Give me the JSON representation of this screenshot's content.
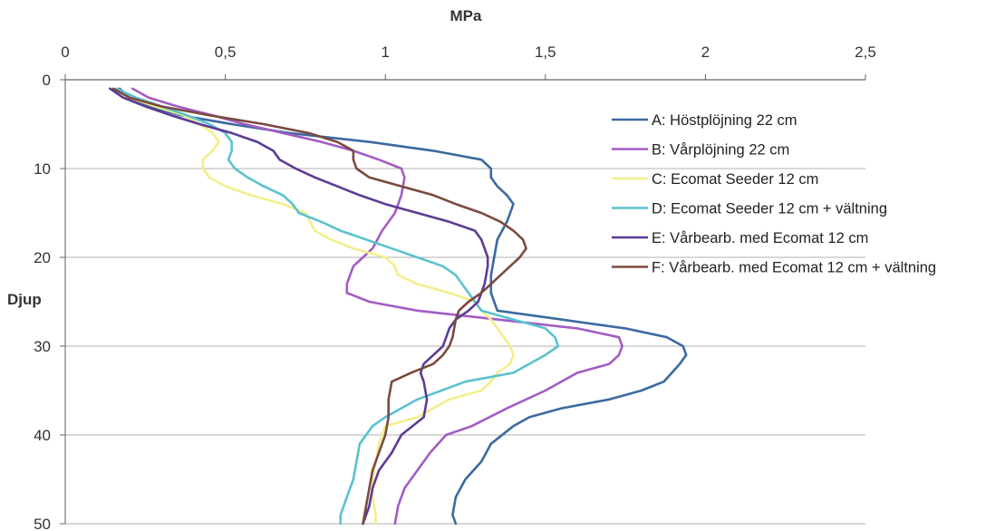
{
  "chart_data": {
    "type": "line",
    "xlabel": "MPa",
    "ylabel": "Djup",
    "xlim": [
      0,
      2.5
    ],
    "ylim": [
      0,
      50
    ],
    "y_inverted": true,
    "x_axis_position": "top",
    "x_ticks": [
      {
        "value": 0,
        "label": "0"
      },
      {
        "value": 0.5,
        "label": "0,5"
      },
      {
        "value": 1,
        "label": "1"
      },
      {
        "value": 1.5,
        "label": "1,5"
      },
      {
        "value": 2,
        "label": "2"
      },
      {
        "value": 2.5,
        "label": "2,5"
      }
    ],
    "y_ticks": [
      {
        "value": 0,
        "label": "0"
      },
      {
        "value": 10,
        "label": "10"
      },
      {
        "value": 20,
        "label": "20"
      },
      {
        "value": 30,
        "label": "30"
      },
      {
        "value": 40,
        "label": "40"
      },
      {
        "value": 50,
        "label": "50"
      }
    ],
    "grid": {
      "horizontal": true,
      "vertical": false
    },
    "legend_position": "right",
    "series": [
      {
        "name": "A: Höstplöjning 22 cm",
        "color": "#3b6aa0",
        "points": [
          [
            0.17,
            1
          ],
          [
            0.2,
            2
          ],
          [
            0.26,
            3
          ],
          [
            0.36,
            4
          ],
          [
            0.52,
            5
          ],
          [
            0.7,
            6
          ],
          [
            0.95,
            7
          ],
          [
            1.15,
            8
          ],
          [
            1.3,
            9
          ],
          [
            1.33,
            10
          ],
          [
            1.33,
            11
          ],
          [
            1.35,
            12
          ],
          [
            1.38,
            13
          ],
          [
            1.4,
            14
          ],
          [
            1.38,
            16
          ],
          [
            1.35,
            18
          ],
          [
            1.34,
            20
          ],
          [
            1.33,
            22
          ],
          [
            1.33,
            24
          ],
          [
            1.35,
            26
          ],
          [
            1.55,
            27
          ],
          [
            1.75,
            28
          ],
          [
            1.88,
            29
          ],
          [
            1.93,
            30
          ],
          [
            1.94,
            31
          ],
          [
            1.92,
            32
          ],
          [
            1.87,
            34
          ],
          [
            1.8,
            35
          ],
          [
            1.7,
            36
          ],
          [
            1.55,
            37
          ],
          [
            1.45,
            38
          ],
          [
            1.4,
            39
          ],
          [
            1.33,
            41
          ],
          [
            1.3,
            43
          ],
          [
            1.25,
            45
          ],
          [
            1.22,
            47
          ],
          [
            1.21,
            49
          ],
          [
            1.22,
            50
          ]
        ]
      },
      {
        "name": "B: Vårplöjning 22 cm",
        "color": "#a35cc4",
        "points": [
          [
            0.21,
            1
          ],
          [
            0.26,
            2
          ],
          [
            0.35,
            3
          ],
          [
            0.46,
            4
          ],
          [
            0.56,
            5
          ],
          [
            0.68,
            6
          ],
          [
            0.8,
            7
          ],
          [
            0.9,
            8
          ],
          [
            0.98,
            9
          ],
          [
            1.05,
            10
          ],
          [
            1.06,
            11
          ],
          [
            1.05,
            13
          ],
          [
            1.03,
            15
          ],
          [
            0.99,
            17
          ],
          [
            0.96,
            19
          ],
          [
            0.93,
            20
          ],
          [
            0.9,
            21
          ],
          [
            0.89,
            22
          ],
          [
            0.88,
            23
          ],
          [
            0.88,
            24
          ],
          [
            0.95,
            25
          ],
          [
            1.1,
            26
          ],
          [
            1.35,
            27
          ],
          [
            1.6,
            28
          ],
          [
            1.73,
            29
          ],
          [
            1.74,
            30
          ],
          [
            1.73,
            31
          ],
          [
            1.7,
            32
          ],
          [
            1.6,
            33
          ],
          [
            1.5,
            35
          ],
          [
            1.38,
            37
          ],
          [
            1.27,
            39
          ],
          [
            1.19,
            40
          ],
          [
            1.14,
            42
          ],
          [
            1.1,
            44
          ],
          [
            1.06,
            46
          ],
          [
            1.04,
            48
          ],
          [
            1.03,
            50
          ]
        ]
      },
      {
        "name": "C: Ecomat Seeder 12 cm",
        "color": "#f3ee8a",
        "points": [
          [
            0.15,
            1
          ],
          [
            0.2,
            2
          ],
          [
            0.28,
            3
          ],
          [
            0.37,
            4
          ],
          [
            0.42,
            5
          ],
          [
            0.46,
            6
          ],
          [
            0.48,
            7
          ],
          [
            0.46,
            8
          ],
          [
            0.43,
            9
          ],
          [
            0.43,
            10
          ],
          [
            0.45,
            11
          ],
          [
            0.5,
            12
          ],
          [
            0.58,
            13
          ],
          [
            0.68,
            14
          ],
          [
            0.75,
            15
          ],
          [
            0.78,
            17
          ],
          [
            0.83,
            18
          ],
          [
            0.9,
            19
          ],
          [
            1.0,
            20
          ],
          [
            1.03,
            21
          ],
          [
            1.04,
            22
          ],
          [
            1.1,
            23
          ],
          [
            1.2,
            24
          ],
          [
            1.28,
            25
          ],
          [
            1.3,
            26
          ],
          [
            1.33,
            27
          ],
          [
            1.37,
            29
          ],
          [
            1.39,
            30
          ],
          [
            1.4,
            31
          ],
          [
            1.39,
            32
          ],
          [
            1.35,
            33
          ],
          [
            1.33,
            34
          ],
          [
            1.3,
            35
          ],
          [
            1.2,
            36
          ],
          [
            1.1,
            38
          ],
          [
            1.0,
            39
          ],
          [
            0.98,
            41
          ],
          [
            0.97,
            43
          ],
          [
            0.96,
            45
          ],
          [
            0.96,
            47
          ],
          [
            0.97,
            49
          ],
          [
            0.97,
            50
          ]
        ]
      },
      {
        "name": "D: Ecomat Seeder 12 cm + vältning",
        "color": "#5ac2cf",
        "points": [
          [
            0.16,
            1
          ],
          [
            0.22,
            2
          ],
          [
            0.3,
            3
          ],
          [
            0.38,
            4
          ],
          [
            0.45,
            5
          ],
          [
            0.5,
            6
          ],
          [
            0.52,
            7
          ],
          [
            0.52,
            8
          ],
          [
            0.51,
            9
          ],
          [
            0.53,
            10
          ],
          [
            0.57,
            11
          ],
          [
            0.62,
            12
          ],
          [
            0.68,
            13
          ],
          [
            0.71,
            14
          ],
          [
            0.73,
            15
          ],
          [
            0.8,
            16
          ],
          [
            0.86,
            17
          ],
          [
            0.94,
            18
          ],
          [
            1.02,
            19
          ],
          [
            1.1,
            20
          ],
          [
            1.18,
            21
          ],
          [
            1.22,
            22
          ],
          [
            1.26,
            24
          ],
          [
            1.28,
            25
          ],
          [
            1.3,
            26
          ],
          [
            1.4,
            27
          ],
          [
            1.5,
            28
          ],
          [
            1.53,
            29
          ],
          [
            1.54,
            30
          ],
          [
            1.5,
            31
          ],
          [
            1.4,
            33
          ],
          [
            1.25,
            34
          ],
          [
            1.1,
            36
          ],
          [
            1.0,
            38
          ],
          [
            0.96,
            39
          ],
          [
            0.92,
            41
          ],
          [
            0.91,
            43
          ],
          [
            0.9,
            45
          ],
          [
            0.88,
            47
          ],
          [
            0.86,
            49
          ],
          [
            0.86,
            50
          ]
        ]
      },
      {
        "name": "E: Vårbearb. med Ecomat 12 cm",
        "color": "#5c3b94",
        "points": [
          [
            0.14,
            1
          ],
          [
            0.18,
            2
          ],
          [
            0.25,
            3
          ],
          [
            0.33,
            4
          ],
          [
            0.42,
            5
          ],
          [
            0.52,
            6
          ],
          [
            0.6,
            7
          ],
          [
            0.65,
            8
          ],
          [
            0.67,
            9
          ],
          [
            0.72,
            10
          ],
          [
            0.78,
            11
          ],
          [
            0.85,
            12
          ],
          [
            0.92,
            13
          ],
          [
            1.0,
            14
          ],
          [
            1.1,
            15
          ],
          [
            1.2,
            16
          ],
          [
            1.28,
            17
          ],
          [
            1.3,
            18
          ],
          [
            1.31,
            19
          ],
          [
            1.32,
            20
          ],
          [
            1.32,
            21
          ],
          [
            1.31,
            23
          ],
          [
            1.29,
            25
          ],
          [
            1.26,
            26
          ],
          [
            1.22,
            27
          ],
          [
            1.2,
            28
          ],
          [
            1.18,
            30
          ],
          [
            1.15,
            31
          ],
          [
            1.12,
            32
          ],
          [
            1.11,
            33
          ],
          [
            1.12,
            34
          ],
          [
            1.13,
            36
          ],
          [
            1.12,
            38
          ],
          [
            1.05,
            40
          ],
          [
            1.02,
            42
          ],
          [
            0.98,
            44
          ],
          [
            0.96,
            46
          ],
          [
            0.95,
            48
          ],
          [
            0.93,
            50
          ]
        ]
      },
      {
        "name": "F: Vårbearb. med Ecomat 12 cm + vältning",
        "color": "#7b4a3e",
        "points": [
          [
            0.15,
            1
          ],
          [
            0.2,
            2
          ],
          [
            0.3,
            3
          ],
          [
            0.45,
            4
          ],
          [
            0.62,
            5
          ],
          [
            0.76,
            6
          ],
          [
            0.85,
            7
          ],
          [
            0.9,
            8
          ],
          [
            0.9,
            9
          ],
          [
            0.91,
            10
          ],
          [
            0.95,
            11
          ],
          [
            1.05,
            12
          ],
          [
            1.15,
            13
          ],
          [
            1.22,
            14
          ],
          [
            1.3,
            15
          ],
          [
            1.36,
            16
          ],
          [
            1.4,
            17
          ],
          [
            1.43,
            18
          ],
          [
            1.44,
            19
          ],
          [
            1.42,
            20
          ],
          [
            1.39,
            21
          ],
          [
            1.36,
            22
          ],
          [
            1.33,
            23
          ],
          [
            1.3,
            24
          ],
          [
            1.26,
            25
          ],
          [
            1.23,
            26
          ],
          [
            1.22,
            27
          ],
          [
            1.21,
            29
          ],
          [
            1.2,
            30
          ],
          [
            1.18,
            31
          ],
          [
            1.15,
            32
          ],
          [
            1.08,
            33
          ],
          [
            1.02,
            34
          ],
          [
            1.01,
            36
          ],
          [
            1.01,
            38
          ],
          [
            1.0,
            40
          ],
          [
            0.98,
            42
          ],
          [
            0.96,
            44
          ],
          [
            0.95,
            46
          ],
          [
            0.94,
            48
          ],
          [
            0.93,
            50
          ]
        ]
      }
    ]
  }
}
